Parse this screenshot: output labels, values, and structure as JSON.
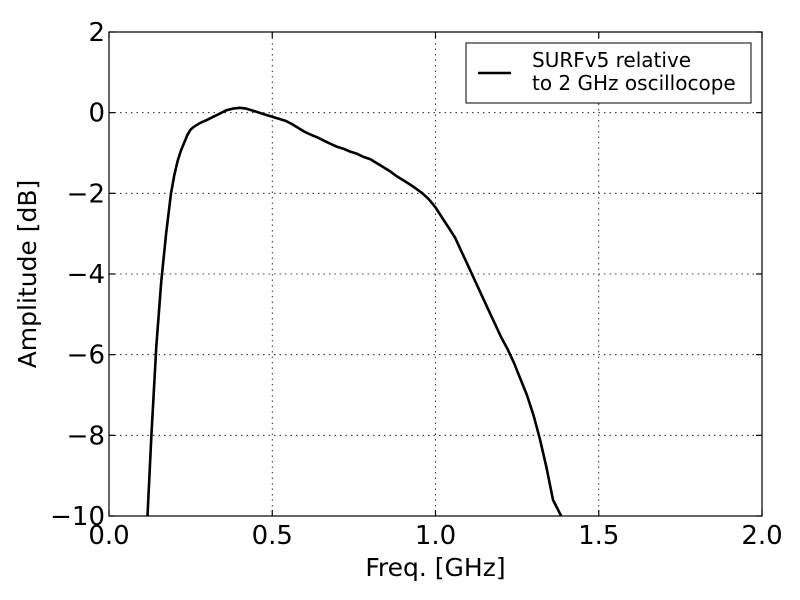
{
  "chart_data": {
    "type": "line",
    "xlabel": "Freq. [GHz]",
    "ylabel": "Amplitude [dB]",
    "xlim": [
      0.0,
      2.0
    ],
    "ylim": [
      -10,
      2
    ],
    "x_ticks": [
      0.0,
      0.5,
      1.0,
      1.5,
      2.0
    ],
    "x_tick_labels": [
      "0.0",
      "0.5",
      "1.0",
      "1.5",
      "2.0"
    ],
    "y_ticks": [
      2,
      0,
      -2,
      -4,
      -6,
      -8,
      -10
    ],
    "y_tick_labels": [
      "2",
      "0",
      "−2",
      "−4",
      "−6",
      "−8",
      "−10"
    ],
    "grid": true,
    "legend_position": "top-right",
    "series": [
      {
        "name": "SURFv5 relative\nto 2 GHz oscillocope",
        "legend_lines": [
          "SURFv5 relative",
          "to 2 GHz oscillocope"
        ],
        "color": "#000000",
        "x": [
          0.118,
          0.13,
          0.145,
          0.16,
          0.175,
          0.19,
          0.2,
          0.21,
          0.22,
          0.23,
          0.24,
          0.25,
          0.26,
          0.28,
          0.3,
          0.32,
          0.34,
          0.36,
          0.38,
          0.4,
          0.42,
          0.44,
          0.46,
          0.48,
          0.5,
          0.52,
          0.54,
          0.56,
          0.58,
          0.6,
          0.62,
          0.64,
          0.66,
          0.68,
          0.7,
          0.72,
          0.74,
          0.76,
          0.78,
          0.8,
          0.82,
          0.84,
          0.86,
          0.88,
          0.9,
          0.92,
          0.94,
          0.96,
          0.98,
          1.0,
          1.02,
          1.04,
          1.06,
          1.08,
          1.1,
          1.12,
          1.14,
          1.16,
          1.18,
          1.2,
          1.22,
          1.24,
          1.26,
          1.28,
          1.3,
          1.32,
          1.34,
          1.36,
          1.385
        ],
        "y": [
          -10.0,
          -8.0,
          -5.8,
          -4.2,
          -3.0,
          -2.0,
          -1.55,
          -1.2,
          -0.95,
          -0.75,
          -0.55,
          -0.42,
          -0.35,
          -0.25,
          -0.18,
          -0.1,
          -0.02,
          0.06,
          0.1,
          0.12,
          0.1,
          0.05,
          0.0,
          -0.05,
          -0.1,
          -0.15,
          -0.2,
          -0.28,
          -0.38,
          -0.48,
          -0.55,
          -0.62,
          -0.7,
          -0.78,
          -0.85,
          -0.9,
          -0.97,
          -1.02,
          -1.1,
          -1.15,
          -1.25,
          -1.35,
          -1.45,
          -1.57,
          -1.67,
          -1.77,
          -1.88,
          -2.0,
          -2.15,
          -2.35,
          -2.6,
          -2.85,
          -3.1,
          -3.45,
          -3.8,
          -4.15,
          -4.5,
          -4.85,
          -5.2,
          -5.55,
          -5.85,
          -6.2,
          -6.6,
          -7.0,
          -7.5,
          -8.1,
          -8.8,
          -9.6,
          -10.0
        ]
      }
    ]
  }
}
